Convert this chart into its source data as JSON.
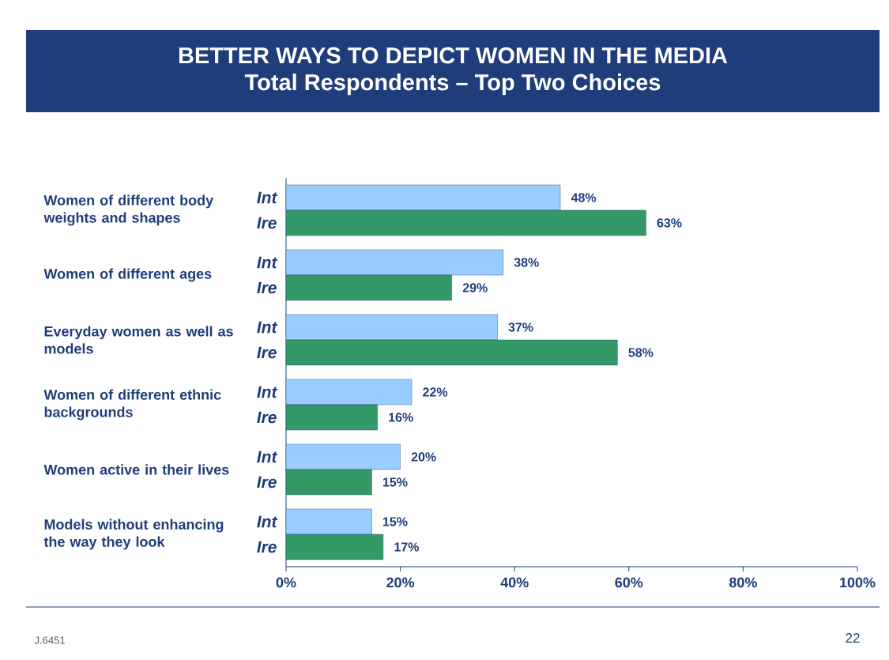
{
  "chart_data": {
    "type": "bar",
    "orientation": "horizontal",
    "title": "BETTER WAYS TO DEPICT WOMEN IN THE MEDIA",
    "subtitle": "Total Respondents – Top Two Choices",
    "categories": [
      "Women of different body weights and shapes",
      "Women of different ages",
      "Everyday women as well as models",
      "Women of different ethnic backgrounds",
      "Women active in their lives",
      "Models without enhancing the way they look"
    ],
    "series": [
      {
        "name": "Int",
        "color": "#99ccff",
        "values": [
          48,
          38,
          37,
          22,
          20,
          15
        ],
        "value_labels": [
          "48%",
          "38%",
          "37%",
          "22%",
          "20%",
          "15%"
        ]
      },
      {
        "name": "Ire",
        "color": "#339966",
        "values": [
          63,
          29,
          58,
          16,
          15,
          17
        ],
        "value_labels": [
          "63%",
          "29%",
          "58%",
          "16%",
          "15%",
          "17%"
        ]
      }
    ],
    "xlim": [
      0,
      100
    ],
    "xticks": [
      {
        "value": 0,
        "label": "0%"
      },
      {
        "value": 20,
        "label": "20%"
      },
      {
        "value": 40,
        "label": "40%"
      },
      {
        "value": 60,
        "label": "60%"
      },
      {
        "value": 80,
        "label": "80%"
      },
      {
        "value": 100,
        "label": "100%"
      }
    ],
    "grid": false,
    "annotations": [
      "J.6451",
      "22"
    ]
  }
}
